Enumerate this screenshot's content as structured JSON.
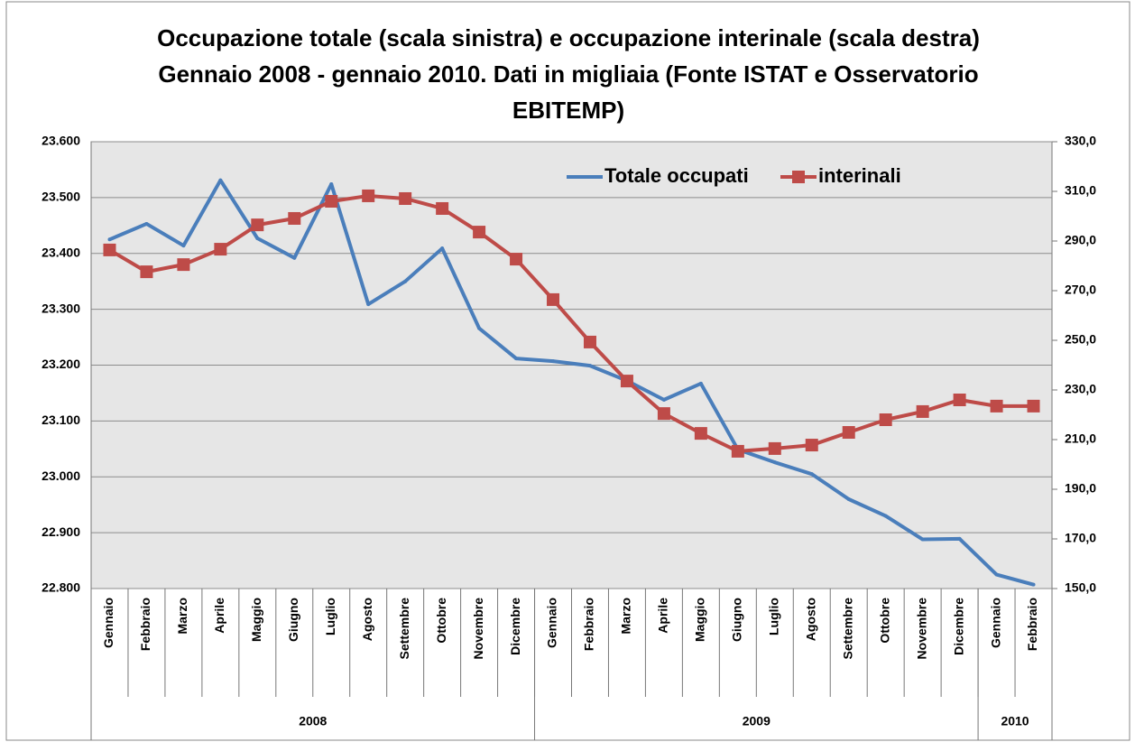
{
  "chart_data": {
    "type": "line",
    "title": "Occupazione totale (scala sinistra) e occupazione interinale (scala destra) Gennaio 2008 -  gennaio 2010. Dati in migliaia (Fonte ISTAT e Osservatorio  EBITEMP)",
    "categories": [
      "Gennaio",
      "Febbraio",
      "Marzo",
      "Aprile",
      "Maggio",
      "Giugno",
      "Luglio",
      "Agosto",
      "Settembre",
      "Ottobre",
      "Novembre",
      "Dicembre",
      "Gennaio",
      "Febbraio",
      "Marzo",
      "Aprile",
      "Maggio",
      "Giugno",
      "Luglio",
      "Agosto",
      "Settembre",
      "Ottobre",
      "Novembre",
      "Dicembre",
      "Gennaio",
      "Febbraio"
    ],
    "group_labels": [
      "2008",
      null,
      null,
      null,
      null,
      null,
      null,
      null,
      null,
      null,
      null,
      null,
      "2009",
      null,
      null,
      null,
      null,
      null,
      null,
      null,
      null,
      null,
      null,
      null,
      "2010",
      null
    ],
    "series": [
      {
        "name": "Totale occupati",
        "color": "#4a7ebb",
        "values": [
          23425,
          23453,
          23414,
          23531,
          23427,
          23392,
          23524,
          23309,
          23350,
          23409,
          23266,
          23212,
          23207,
          23199,
          23172,
          23138,
          23167,
          23049,
          23026,
          23005,
          22960,
          22930,
          22888,
          22889,
          22825,
          22807
        ]
      },
      {
        "name": "interinali",
        "color": "#be4b48",
        "axis": "y2",
        "marker": "square",
        "values": [
          286.4,
          277.6,
          280.5,
          286.7,
          296.5,
          299.1,
          306.0,
          308.2,
          307.1,
          303.1,
          293.6,
          282.7,
          266.4,
          249.3,
          233.6,
          220.5,
          212.5,
          205.3,
          206.4,
          207.8,
          212.9,
          218.0,
          221.3,
          226.0,
          223.5,
          223.5
        ]
      }
    ],
    "ylim": [
      22800,
      23600
    ],
    "yticks": [
      {
        "value": 22800,
        "label": "22.800"
      },
      {
        "value": 22900,
        "label": "22.900"
      },
      {
        "value": 23000,
        "label": "23.000"
      },
      {
        "value": 23100,
        "label": "23.100"
      },
      {
        "value": 23200,
        "label": "23.200"
      },
      {
        "value": 23300,
        "label": "23.300"
      },
      {
        "value": 23400,
        "label": "23.400"
      },
      {
        "value": 23500,
        "label": "23.500"
      },
      {
        "value": 23600,
        "label": "23.600"
      }
    ],
    "y2lim": [
      150,
      330
    ],
    "y2ticks": [
      {
        "value": 150,
        "label": "150,0"
      },
      {
        "value": 170,
        "label": "170,0"
      },
      {
        "value": 190,
        "label": "190,0"
      },
      {
        "value": 210,
        "label": "210,0"
      },
      {
        "value": 230,
        "label": "230,0"
      },
      {
        "value": 250,
        "label": "250,0"
      },
      {
        "value": 270,
        "label": "270,0"
      },
      {
        "value": 290,
        "label": "290,0"
      },
      {
        "value": 310,
        "label": "310,0"
      },
      {
        "value": 330,
        "label": "330,0"
      }
    ],
    "grid": true,
    "legend": "top-right"
  }
}
